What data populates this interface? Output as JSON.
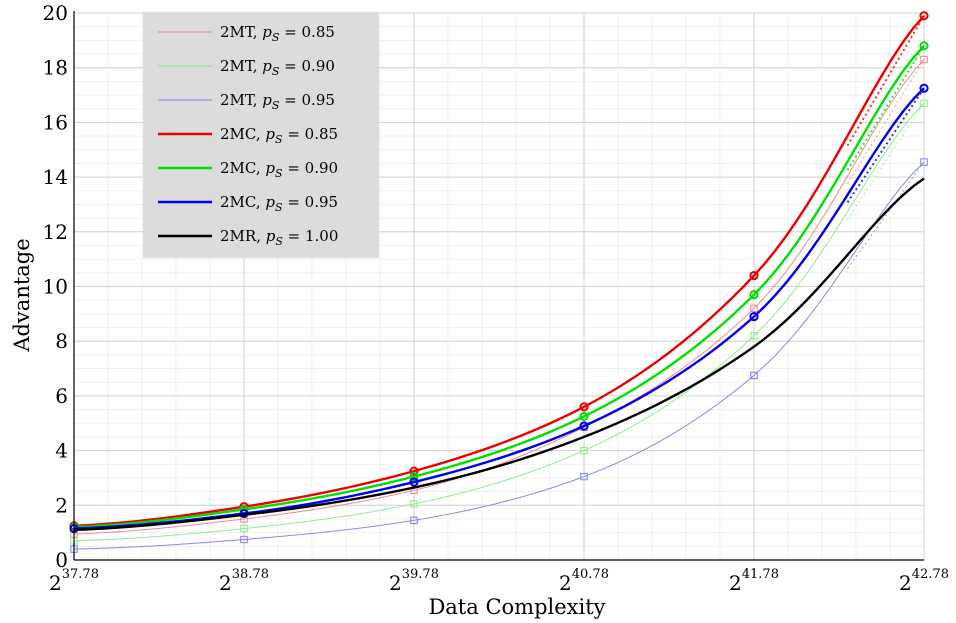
{
  "chart_data": {
    "type": "line",
    "xlabel": "Data Complexity",
    "ylabel": "Advantage",
    "x_ticks": [
      {
        "base": "2",
        "exp": "37.78",
        "value": 37.78
      },
      {
        "base": "2",
        "exp": "38.78",
        "value": 38.78
      },
      {
        "base": "2",
        "exp": "39.78",
        "value": 39.78
      },
      {
        "base": "2",
        "exp": "40.78",
        "value": 40.78
      },
      {
        "base": "2",
        "exp": "41.78",
        "value": 41.78
      },
      {
        "base": "2",
        "exp": "42.78",
        "value": 42.78
      }
    ],
    "y_ticks": [
      "0",
      "2",
      "4",
      "6",
      "8",
      "10",
      "12",
      "14",
      "16",
      "18",
      "20"
    ],
    "xlim": [
      37.78,
      42.78
    ],
    "ylim": [
      0,
      20
    ],
    "grid": true,
    "legend_position": "top-left",
    "x_scale": "log2 (exponent shown)",
    "series": [
      {
        "name": "2MT, p_S = 0.85",
        "legend": {
          "main": "2MT, ",
          "p": "p",
          "sub": "S",
          "eq": " = 0.85"
        },
        "color": "#f08080",
        "style": "thin",
        "marker": "square",
        "x": [
          37.78,
          38.78,
          39.78,
          40.78,
          41.78,
          42.78
        ],
        "y": [
          0.95,
          1.5,
          2.55,
          4.85,
          9.2,
          18.3
        ]
      },
      {
        "name": "2MT, p_S = 0.90",
        "legend": {
          "main": "2MT, ",
          "p": "p",
          "sub": "S",
          "eq": " = 0.90"
        },
        "color": "#80ee80",
        "style": "thin",
        "marker": "square",
        "x": [
          37.78,
          38.78,
          39.78,
          40.78,
          41.78,
          42.78
        ],
        "y": [
          0.7,
          1.15,
          2.05,
          4.0,
          8.2,
          16.7
        ]
      },
      {
        "name": "2MT, p_S = 0.95",
        "legend": {
          "main": "2MT, ",
          "p": "p",
          "sub": "S",
          "eq": " = 0.95"
        },
        "color": "#7b7bf0",
        "style": "thin",
        "marker": "square",
        "x": [
          37.78,
          38.78,
          39.78,
          40.78,
          41.78,
          42.78
        ],
        "y": [
          0.4,
          0.75,
          1.45,
          3.05,
          6.75,
          14.55
        ]
      },
      {
        "name": "2MC, p_S = 0.85",
        "legend": {
          "main": "2MC, ",
          "p": "p",
          "sub": "S",
          "eq": " = 0.85"
        },
        "color": "#ee0000",
        "style": "thick",
        "marker": "circle",
        "x": [
          37.78,
          38.78,
          39.78,
          40.78,
          41.78,
          42.78
        ],
        "y": [
          1.25,
          1.95,
          3.25,
          5.6,
          10.4,
          19.9
        ]
      },
      {
        "name": "2MC, p_S = 0.90",
        "legend": {
          "main": "2MC, ",
          "p": "p",
          "sub": "S",
          "eq": " = 0.90"
        },
        "color": "#00e000",
        "style": "thick",
        "marker": "circle",
        "x": [
          37.78,
          38.78,
          39.78,
          40.78,
          41.78,
          42.78
        ],
        "y": [
          1.2,
          1.85,
          3.05,
          5.25,
          9.7,
          18.8
        ]
      },
      {
        "name": "2MC, p_S = 0.95",
        "legend": {
          "main": "2MC, ",
          "p": "p",
          "sub": "S",
          "eq": " = 0.95"
        },
        "color": "#0000ee",
        "style": "thick",
        "marker": "circle",
        "x": [
          37.78,
          38.78,
          39.78,
          40.78,
          41.78,
          42.78
        ],
        "y": [
          1.15,
          1.7,
          2.85,
          4.9,
          8.9,
          17.25
        ]
      },
      {
        "name": "2MR, p_S = 1.00",
        "legend": {
          "main": "2MR, ",
          "p": "p",
          "sub": "S",
          "eq": " = 1.00"
        },
        "color": "#000000",
        "style": "thick",
        "marker": "none",
        "x": [
          37.78,
          38.78,
          39.78,
          40.78,
          41.78,
          42.78
        ],
        "y": [
          1.1,
          1.65,
          2.65,
          4.5,
          7.8,
          13.95
        ]
      }
    ]
  }
}
